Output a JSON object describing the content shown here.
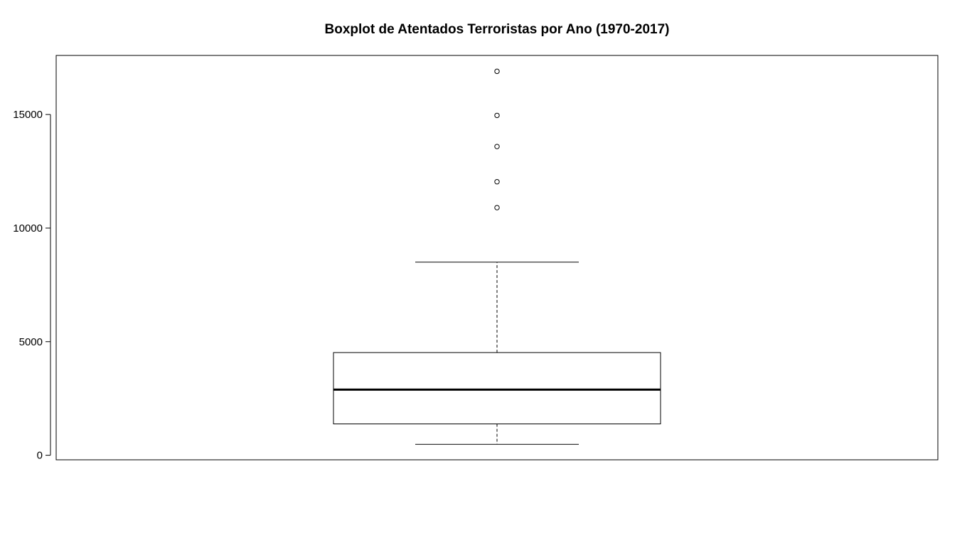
{
  "chart_data": {
    "type": "boxplot",
    "title": "Boxplot de Atentados Terroristas por Ano (1970-2017)",
    "xlabel": "",
    "ylabel": "",
    "ylim": [
      -200,
      17600
    ],
    "y_ticks": [
      0,
      5000,
      10000,
      15000
    ],
    "y_tick_labels": [
      "0",
      "5000",
      "10000",
      "15000"
    ],
    "grid": false,
    "legend": "none",
    "box": {
      "whisker_low": 480,
      "q1": 1380,
      "median": 2890,
      "q3": 4520,
      "whisker_high": 8500
    },
    "outliers": [
      10900,
      12040,
      13590,
      14960,
      16900
    ],
    "colors": {
      "stroke": "#000000",
      "fill": "#ffffff"
    }
  }
}
